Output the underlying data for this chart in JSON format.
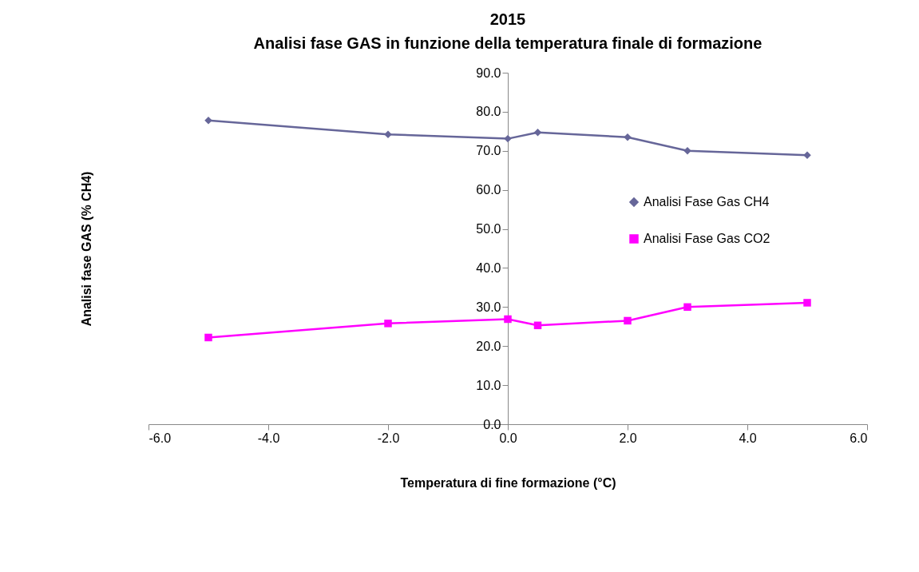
{
  "chart_data": {
    "type": "line",
    "title": "2015",
    "subtitle": "Analisi fase GAS in funzione della temperatura finale di formazione",
    "xlabel": "Temperatura di fine formazione (°C)",
    "ylabel": "Analisi fase GAS (% CH4)",
    "series": [
      {
        "name": "Analisi Fase Gas CH4",
        "color": "#666699",
        "marker": "diamond",
        "x": [
          -5,
          -2,
          0,
          0.5,
          2,
          3,
          5
        ],
        "values": [
          77.8,
          74.2,
          73.1,
          74.7,
          73.5,
          70.0,
          68.9
        ]
      },
      {
        "name": "Analisi Fase Gas CO2",
        "color": "#ff00ff",
        "marker": "square",
        "x": [
          -5,
          -2,
          0,
          0.5,
          2,
          3,
          5
        ],
        "values": [
          22.2,
          25.8,
          26.9,
          25.3,
          26.5,
          30.0,
          31.1
        ]
      }
    ],
    "xlim": [
      -6,
      6
    ],
    "xticks": [
      {
        "value": -6,
        "label": "-6.0"
      },
      {
        "value": -4,
        "label": "-4.0"
      },
      {
        "value": -2,
        "label": "-2.0"
      },
      {
        "value": 0,
        "label": "0.0"
      },
      {
        "value": 2,
        "label": "2.0"
      },
      {
        "value": 4,
        "label": "4.0"
      },
      {
        "value": 6,
        "label": "6.0"
      }
    ],
    "ylim": [
      0,
      90
    ],
    "yticks": [
      {
        "value": 0,
        "label": "0.0"
      },
      {
        "value": 10,
        "label": "10.0"
      },
      {
        "value": 20,
        "label": "20.0"
      },
      {
        "value": 30,
        "label": "30.0"
      },
      {
        "value": 40,
        "label": "40.0"
      },
      {
        "value": 50,
        "label": "50.0"
      },
      {
        "value": 60,
        "label": "60.0"
      },
      {
        "value": 70,
        "label": "70.0"
      },
      {
        "value": 80,
        "label": "80.0"
      },
      {
        "value": 90,
        "label": "90.0"
      }
    ],
    "grid": false,
    "legend": "right",
    "line_style": "solid"
  }
}
